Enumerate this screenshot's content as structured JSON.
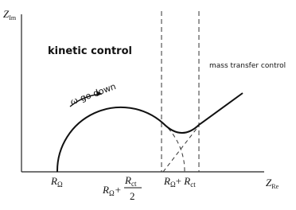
{
  "axes": {
    "y_label": {
      "main": "Z",
      "sub": "Im"
    },
    "x_label": {
      "main": "Z",
      "sub": "Re"
    }
  },
  "regions": {
    "kinetic": "kinetic control",
    "mass_transfer": "mass transfer control"
  },
  "arrow_label": {
    "symbol": "ω",
    "text": "go down"
  },
  "x_marks": {
    "r_omega": {
      "main": "R",
      "sub": "Ω"
    },
    "half": {
      "main": "R",
      "sub": "Ω",
      "plus": "+",
      "num_main": "R",
      "num_sub": "ct",
      "den": "2"
    },
    "full": {
      "main": "R",
      "sub": "Ω",
      "plus": "+ ",
      "main2": "R",
      "sub2": "ct"
    }
  }
}
